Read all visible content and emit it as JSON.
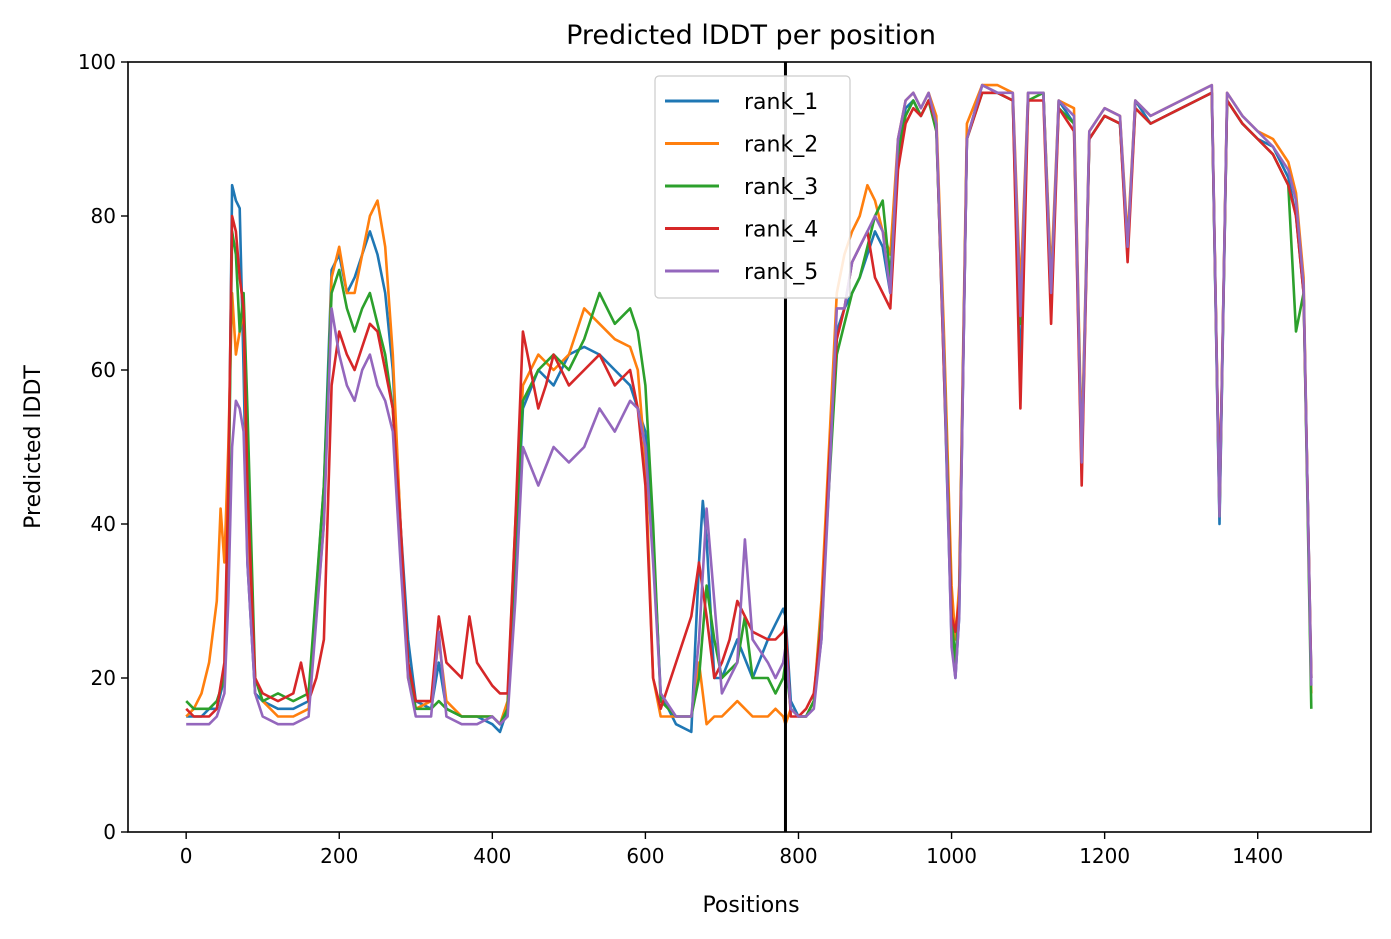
{
  "chart_data": {
    "type": "line",
    "title": "Predicted lDDT per position",
    "xlabel": "Positions",
    "ylabel": "Predicted lDDT",
    "xlim": [
      -76,
      1548
    ],
    "ylim": [
      0,
      100
    ],
    "xticks": [
      0,
      200,
      400,
      600,
      800,
      1000,
      1200,
      1400
    ],
    "yticks": [
      0,
      20,
      40,
      60,
      80,
      100
    ],
    "grid": false,
    "legend_position": "top-center",
    "vline": 783,
    "series": [
      {
        "name": "rank_1",
        "color": "#1f77b4",
        "x": [
          0,
          10,
          20,
          30,
          40,
          50,
          55,
          60,
          65,
          70,
          75,
          80,
          90,
          100,
          120,
          140,
          160,
          180,
          190,
          200,
          210,
          220,
          230,
          240,
          250,
          260,
          270,
          280,
          290,
          300,
          320,
          330,
          340,
          360,
          380,
          400,
          410,
          420,
          430,
          440,
          460,
          480,
          500,
          520,
          540,
          560,
          580,
          590,
          600,
          610,
          620,
          640,
          660,
          670,
          675,
          680,
          690,
          700,
          720,
          740,
          760,
          770,
          780,
          783,
          790,
          800,
          810,
          820,
          830,
          840,
          850,
          860,
          870,
          880,
          890,
          900,
          910,
          920,
          930,
          940,
          950,
          960,
          970,
          980,
          990,
          1000,
          1005,
          1010,
          1020,
          1040,
          1060,
          1080,
          1090,
          1100,
          1120,
          1130,
          1140,
          1160,
          1170,
          1180,
          1200,
          1220,
          1230,
          1240,
          1260,
          1280,
          1300,
          1320,
          1340,
          1350,
          1360,
          1380,
          1400,
          1420,
          1440,
          1450,
          1460,
          1470
        ],
        "y": [
          15,
          15,
          15,
          16,
          16,
          20,
          40,
          84,
          82,
          81,
          60,
          35,
          18,
          17,
          16,
          16,
          17,
          45,
          73,
          75,
          70,
          72,
          75,
          78,
          75,
          70,
          60,
          40,
          25,
          17,
          16,
          22,
          16,
          15,
          15,
          14,
          13,
          16,
          35,
          55,
          60,
          58,
          62,
          63,
          62,
          60,
          58,
          55,
          52,
          38,
          18,
          14,
          13,
          35,
          43,
          38,
          20,
          20,
          25,
          20,
          25,
          27,
          29,
          28,
          17,
          15,
          15,
          17,
          25,
          48,
          65,
          68,
          70,
          72,
          75,
          78,
          76,
          70,
          88,
          94,
          95,
          93,
          95,
          92,
          60,
          25,
          20,
          28,
          90,
          97,
          96,
          95,
          59,
          96,
          96,
          68,
          95,
          92,
          47,
          90,
          93,
          92,
          75,
          95,
          92,
          93,
          94,
          95,
          96,
          40,
          95,
          92,
          90,
          89,
          85,
          80,
          70,
          20
        ]
      },
      {
        "name": "rank_2",
        "color": "#ff7f0e",
        "x": [
          0,
          10,
          20,
          30,
          40,
          45,
          50,
          55,
          60,
          65,
          70,
          75,
          80,
          90,
          100,
          120,
          140,
          160,
          180,
          190,
          200,
          210,
          220,
          230,
          240,
          250,
          260,
          270,
          280,
          290,
          300,
          320,
          330,
          340,
          360,
          380,
          400,
          410,
          420,
          430,
          440,
          460,
          480,
          500,
          520,
          540,
          560,
          580,
          590,
          600,
          610,
          620,
          640,
          660,
          670,
          680,
          690,
          700,
          720,
          740,
          760,
          770,
          780,
          783,
          790,
          800,
          810,
          820,
          830,
          840,
          850,
          860,
          870,
          880,
          890,
          900,
          910,
          920,
          930,
          940,
          950,
          960,
          970,
          980,
          990,
          1000,
          1005,
          1010,
          1020,
          1040,
          1060,
          1080,
          1090,
          1100,
          1120,
          1130,
          1140,
          1160,
          1170,
          1180,
          1200,
          1220,
          1230,
          1240,
          1260,
          1280,
          1300,
          1320,
          1340,
          1350,
          1360,
          1380,
          1400,
          1420,
          1440,
          1450,
          1460,
          1470
        ],
        "y": [
          15,
          16,
          18,
          22,
          30,
          42,
          35,
          50,
          70,
          62,
          65,
          68,
          40,
          20,
          17,
          15,
          15,
          16,
          40,
          72,
          76,
          70,
          70,
          75,
          80,
          82,
          76,
          62,
          40,
          20,
          16,
          17,
          25,
          17,
          15,
          15,
          15,
          14,
          17,
          40,
          58,
          62,
          60,
          62,
          68,
          66,
          64,
          63,
          60,
          48,
          20,
          15,
          15,
          15,
          22,
          14,
          15,
          15,
          17,
          15,
          15,
          16,
          15,
          14,
          16,
          15,
          15,
          17,
          30,
          50,
          70,
          75,
          78,
          80,
          84,
          82,
          78,
          75,
          90,
          95,
          96,
          94,
          96,
          93,
          65,
          32,
          25,
          32,
          92,
          97,
          97,
          96,
          70,
          96,
          96,
          72,
          95,
          94,
          50,
          91,
          94,
          93,
          77,
          95,
          93,
          94,
          95,
          96,
          97,
          42,
          96,
          93,
          91,
          90,
          87,
          83,
          72,
          18
        ]
      },
      {
        "name": "rank_3",
        "color": "#2ca02c",
        "x": [
          0,
          10,
          20,
          30,
          40,
          50,
          55,
          60,
          65,
          70,
          75,
          80,
          90,
          100,
          120,
          140,
          160,
          180,
          190,
          200,
          210,
          220,
          230,
          240,
          250,
          260,
          270,
          280,
          290,
          300,
          320,
          330,
          340,
          360,
          380,
          400,
          410,
          420,
          430,
          440,
          460,
          480,
          500,
          520,
          540,
          560,
          580,
          590,
          600,
          610,
          620,
          640,
          660,
          670,
          680,
          690,
          700,
          720,
          730,
          740,
          760,
          770,
          780,
          783,
          790,
          800,
          810,
          820,
          830,
          840,
          850,
          860,
          870,
          880,
          890,
          900,
          910,
          920,
          930,
          940,
          950,
          960,
          970,
          980,
          990,
          1000,
          1005,
          1010,
          1020,
          1040,
          1060,
          1080,
          1090,
          1100,
          1120,
          1130,
          1140,
          1160,
          1170,
          1180,
          1200,
          1220,
          1230,
          1240,
          1260,
          1280,
          1300,
          1320,
          1340,
          1350,
          1360,
          1380,
          1400,
          1420,
          1440,
          1450,
          1460,
          1470
        ],
        "y": [
          17,
          16,
          16,
          16,
          17,
          20,
          40,
          78,
          75,
          65,
          70,
          55,
          20,
          17,
          18,
          17,
          18,
          45,
          70,
          73,
          68,
          65,
          68,
          70,
          66,
          62,
          55,
          38,
          22,
          16,
          16,
          17,
          16,
          15,
          15,
          15,
          14,
          16,
          38,
          56,
          60,
          62,
          60,
          64,
          70,
          66,
          68,
          65,
          58,
          40,
          17,
          15,
          15,
          20,
          32,
          25,
          20,
          22,
          28,
          20,
          20,
          18,
          20,
          22,
          16,
          15,
          15,
          17,
          28,
          45,
          62,
          66,
          70,
          72,
          76,
          80,
          82,
          72,
          88,
          93,
          95,
          93,
          95,
          91,
          62,
          28,
          22,
          30,
          90,
          96,
          96,
          95,
          66,
          95,
          96,
          70,
          94,
          92,
          48,
          90,
          93,
          92,
          76,
          94,
          92,
          93,
          94,
          95,
          96,
          41,
          95,
          92,
          90,
          88,
          84,
          65,
          70,
          16
        ]
      },
      {
        "name": "rank_4",
        "color": "#d62728",
        "x": [
          0,
          10,
          20,
          30,
          40,
          50,
          55,
          60,
          65,
          70,
          75,
          80,
          90,
          100,
          120,
          140,
          150,
          160,
          170,
          180,
          190,
          200,
          210,
          220,
          230,
          240,
          250,
          260,
          270,
          280,
          290,
          300,
          320,
          330,
          340,
          360,
          370,
          380,
          400,
          410,
          420,
          430,
          440,
          450,
          460,
          470,
          480,
          500,
          520,
          540,
          560,
          580,
          590,
          600,
          610,
          620,
          640,
          660,
          670,
          680,
          690,
          700,
          710,
          720,
          740,
          760,
          770,
          780,
          783,
          790,
          800,
          810,
          820,
          830,
          840,
          850,
          860,
          870,
          880,
          890,
          900,
          910,
          920,
          930,
          940,
          950,
          960,
          970,
          980,
          990,
          1000,
          1005,
          1010,
          1020,
          1040,
          1060,
          1080,
          1090,
          1100,
          1120,
          1130,
          1140,
          1160,
          1170,
          1180,
          1200,
          1220,
          1230,
          1240,
          1260,
          1280,
          1300,
          1320,
          1340,
          1350,
          1360,
          1380,
          1400,
          1420,
          1440,
          1450,
          1460,
          1470
        ],
        "y": [
          16,
          15,
          15,
          15,
          16,
          22,
          45,
          80,
          78,
          72,
          68,
          45,
          20,
          18,
          17,
          18,
          22,
          17,
          20,
          25,
          58,
          65,
          62,
          60,
          63,
          66,
          65,
          60,
          55,
          40,
          22,
          17,
          17,
          28,
          22,
          20,
          28,
          22,
          19,
          18,
          18,
          40,
          65,
          60,
          55,
          58,
          62,
          58,
          60,
          62,
          58,
          60,
          55,
          45,
          20,
          16,
          22,
          28,
          35,
          28,
          20,
          22,
          25,
          30,
          26,
          25,
          25,
          26,
          27,
          15,
          15,
          16,
          18,
          27,
          48,
          64,
          68,
          74,
          76,
          78,
          72,
          70,
          68,
          86,
          92,
          94,
          93,
          95,
          92,
          60,
          28,
          26,
          30,
          90,
          96,
          96,
          95,
          55,
          95,
          95,
          66,
          94,
          91,
          45,
          90,
          93,
          92,
          74,
          94,
          92,
          93,
          94,
          95,
          96,
          42,
          95,
          92,
          90,
          88,
          84,
          80,
          70,
          20
        ]
      },
      {
        "name": "rank_5",
        "color": "#9467bd",
        "x": [
          0,
          10,
          20,
          30,
          40,
          50,
          55,
          60,
          65,
          70,
          75,
          80,
          90,
          100,
          120,
          140,
          160,
          180,
          190,
          200,
          210,
          220,
          230,
          240,
          250,
          260,
          270,
          280,
          290,
          300,
          320,
          330,
          340,
          360,
          380,
          400,
          410,
          420,
          430,
          440,
          460,
          480,
          500,
          520,
          540,
          560,
          580,
          590,
          600,
          610,
          620,
          640,
          660,
          670,
          680,
          690,
          700,
          720,
          730,
          740,
          760,
          770,
          780,
          783,
          790,
          800,
          810,
          820,
          830,
          840,
          850,
          860,
          870,
          880,
          890,
          900,
          910,
          920,
          930,
          940,
          950,
          960,
          970,
          980,
          990,
          1000,
          1005,
          1010,
          1020,
          1040,
          1060,
          1080,
          1090,
          1100,
          1120,
          1130,
          1140,
          1160,
          1170,
          1180,
          1200,
          1220,
          1230,
          1240,
          1260,
          1280,
          1300,
          1320,
          1340,
          1350,
          1360,
          1380,
          1400,
          1420,
          1440,
          1450,
          1460,
          1470
        ],
        "y": [
          14,
          14,
          14,
          14,
          15,
          18,
          30,
          50,
          56,
          55,
          52,
          35,
          18,
          15,
          14,
          14,
          15,
          40,
          68,
          62,
          58,
          56,
          60,
          62,
          58,
          56,
          52,
          35,
          20,
          15,
          15,
          26,
          15,
          14,
          14,
          15,
          14,
          15,
          30,
          50,
          45,
          50,
          48,
          50,
          55,
          52,
          56,
          55,
          50,
          35,
          18,
          15,
          15,
          25,
          42,
          30,
          18,
          22,
          38,
          25,
          22,
          20,
          22,
          24,
          16,
          15,
          15,
          16,
          25,
          45,
          68,
          68,
          74,
          76,
          78,
          80,
          78,
          70,
          90,
          95,
          96,
          94,
          96,
          92,
          62,
          24,
          20,
          28,
          90,
          97,
          96,
          96,
          67,
          96,
          96,
          70,
          95,
          93,
          48,
          91,
          94,
          93,
          76,
          95,
          93,
          94,
          95,
          96,
          97,
          41,
          96,
          93,
          91,
          89,
          86,
          82,
          71,
          19
        ]
      }
    ]
  }
}
